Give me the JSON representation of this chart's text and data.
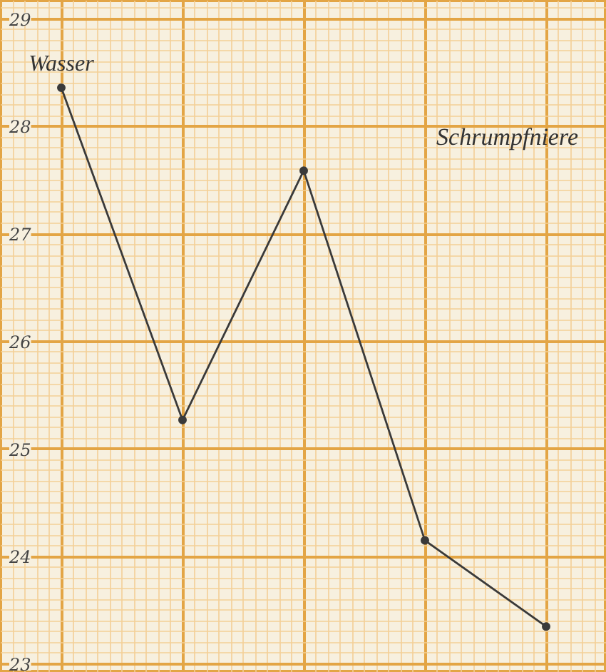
{
  "chart_data": {
    "type": "line",
    "categories": [
      null,
      null,
      null,
      null,
      null
    ],
    "series": [
      {
        "color": "#3a3a3a",
        "values": [
          28.36,
          25.27,
          27.59,
          24.15,
          23.35
        ]
      }
    ],
    "ylim": [
      22.92,
      29.17
    ],
    "yticks": [
      23,
      24,
      25,
      26,
      27,
      28,
      29
    ],
    "tick_labels": "y",
    "grid": true,
    "marker": "circle",
    "line_style": "solid",
    "annotations": [
      "Wasser",
      "Schrumpfniere"
    ]
  }
}
